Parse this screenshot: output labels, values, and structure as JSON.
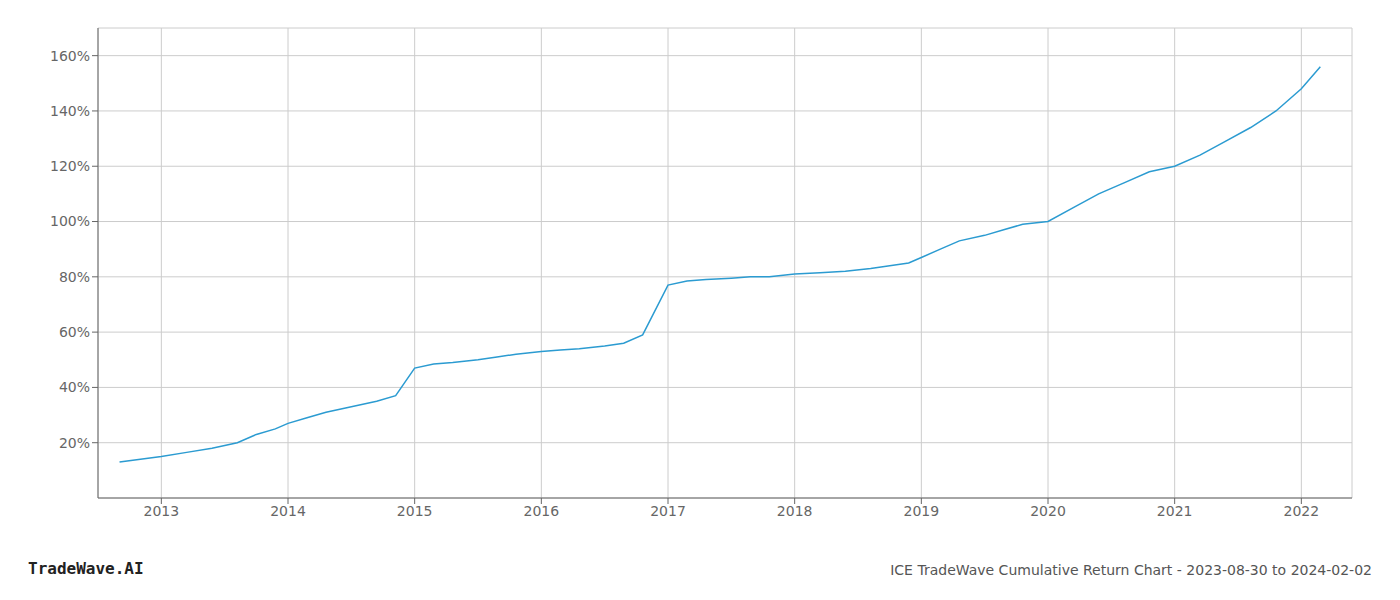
{
  "chart_data": {
    "type": "line",
    "title": "ICE TradeWave Cumulative Return Chart - 2023-08-30 to 2024-02-02",
    "annotations": [
      "TradeWave.AI"
    ],
    "color": "#2b9bd1",
    "grid": true,
    "x": [
      2012.67,
      2013.0,
      2013.2,
      2013.4,
      2013.6,
      2013.75,
      2013.9,
      2014.0,
      2014.15,
      2014.3,
      2014.5,
      2014.7,
      2014.85,
      2015.0,
      2015.15,
      2015.3,
      2015.5,
      2015.65,
      2015.8,
      2016.0,
      2016.15,
      2016.3,
      2016.5,
      2016.65,
      2016.8,
      2017.0,
      2017.15,
      2017.3,
      2017.5,
      2017.65,
      2017.8,
      2018.0,
      2018.2,
      2018.4,
      2018.6,
      2018.75,
      2018.9,
      2019.0,
      2019.15,
      2019.3,
      2019.5,
      2019.65,
      2019.8,
      2020.0,
      2020.2,
      2020.4,
      2020.6,
      2020.8,
      2021.0,
      2021.2,
      2021.4,
      2021.6,
      2021.8,
      2022.0,
      2022.15
    ],
    "values": [
      13,
      15,
      16.5,
      18,
      20,
      23,
      25,
      27,
      29,
      31,
      33,
      35,
      37,
      47,
      48.5,
      49,
      50,
      51,
      52,
      53,
      53.5,
      54,
      55,
      56,
      59,
      77,
      78.5,
      79,
      79.5,
      80,
      80,
      81,
      81.5,
      82,
      83,
      84,
      85,
      87,
      90,
      93,
      95,
      97,
      99,
      100,
      105,
      110,
      114,
      118,
      120,
      124,
      129,
      134,
      140,
      148,
      156
    ],
    "xlim": [
      2012.5,
      2022.4
    ],
    "ylim": [
      0,
      170
    ],
    "xticks": [
      2013,
      2014,
      2015,
      2016,
      2017,
      2018,
      2019,
      2020,
      2021,
      2022
    ],
    "yticks": [
      {
        "value": 20,
        "label": "20%"
      },
      {
        "value": 40,
        "label": "40%"
      },
      {
        "value": 60,
        "label": "60%"
      },
      {
        "value": 80,
        "label": "80%"
      },
      {
        "value": 100,
        "label": "100%"
      },
      {
        "value": 120,
        "label": "120%"
      },
      {
        "value": 140,
        "label": "140%"
      },
      {
        "value": 160,
        "label": "160%"
      }
    ]
  }
}
